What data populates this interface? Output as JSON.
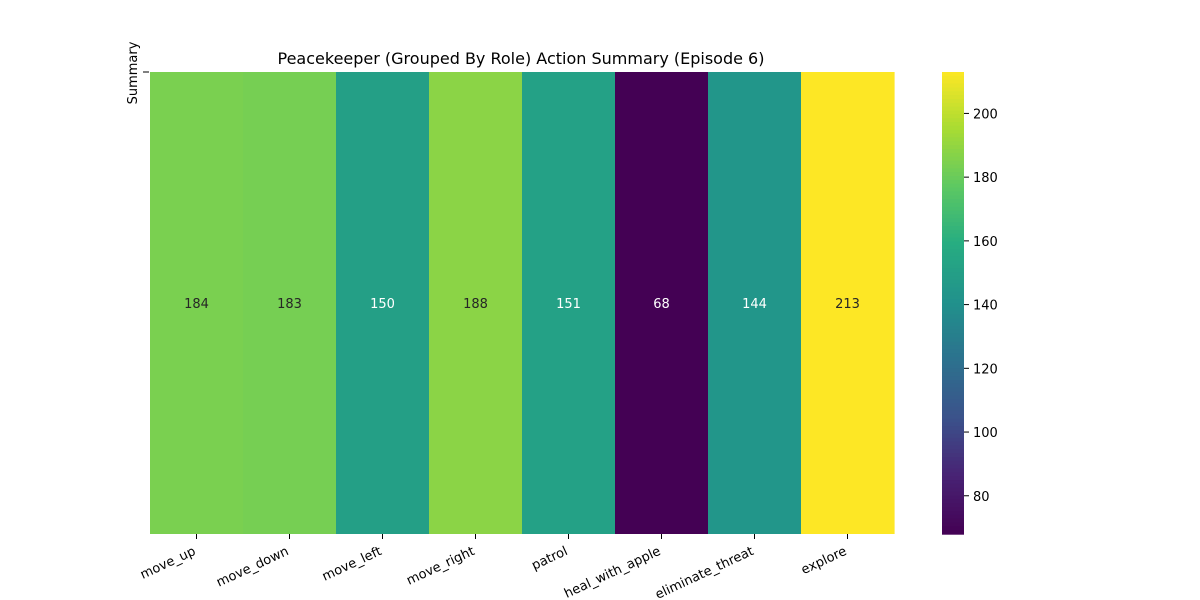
{
  "chart_data": {
    "type": "heatmap",
    "title": "Peacekeeper (Grouped By Role) Action Summary (Episode 6)",
    "ylabel": "Summary",
    "xlabel": "",
    "categories": [
      "move_up",
      "move_down",
      "move_left",
      "move_right",
      "patrol",
      "heal_with_apple",
      "eliminate_threat",
      "explore"
    ],
    "rows": [
      "Summary"
    ],
    "values": [
      184,
      183,
      150,
      188,
      151,
      68,
      144,
      213
    ],
    "colormap": "viridis",
    "color_range": [
      68,
      213
    ],
    "colorbar_ticks": [
      80,
      100,
      120,
      140,
      160,
      180,
      200
    ],
    "annotations": true
  }
}
